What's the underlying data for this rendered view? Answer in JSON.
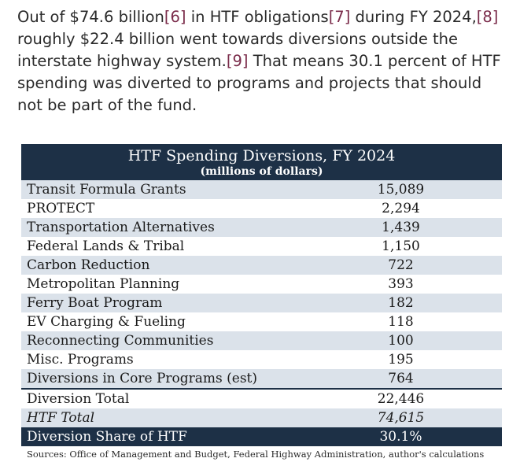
{
  "paragraph": {
    "t1": "Out of $74.6 billion",
    "ref6": "[6]",
    "t2": " in HTF obligations",
    "ref7": "[7]",
    "t3": " during FY 2024,",
    "ref8": "[8]",
    "t4": " roughly $22.4 billion went towards diversions outside the interstate highway system.",
    "ref9": "[9]",
    "t5": " That means 30.1 percent of HTF spending was diverted to programs and projects that should not be part of the fund."
  },
  "table": {
    "title": "HTF Spending Diversions, FY 2024",
    "subtitle": "(millions of dollars)",
    "rows": [
      {
        "label": "Transit Formula Grants",
        "value": "15,089"
      },
      {
        "label": "PROTECT",
        "value": "2,294"
      },
      {
        "label": "Transportation Alternatives",
        "value": "1,439"
      },
      {
        "label": "Federal Lands & Tribal",
        "value": "1,150"
      },
      {
        "label": "Carbon Reduction",
        "value": "722"
      },
      {
        "label": "Metropolitan Planning",
        "value": "393"
      },
      {
        "label": "Ferry Boat Program",
        "value": "182"
      },
      {
        "label": "EV Charging & Fueling",
        "value": "118"
      },
      {
        "label": "Reconnecting Communities",
        "value": "100"
      },
      {
        "label": "Misc. Programs",
        "value": "195"
      },
      {
        "label": "Diversions in Core Programs (est)",
        "value": "764"
      }
    ],
    "diversion_total": {
      "label": "Diversion Total",
      "value": "22,446"
    },
    "htf_total": {
      "label": "HTF Total",
      "value": "74,615"
    },
    "diversion_share": {
      "label": "Diversion Share of HTF",
      "value": "30.1%"
    },
    "sources": "Sources: Office of Management and Budget, Federal Highway Administration, author's calculations"
  }
}
